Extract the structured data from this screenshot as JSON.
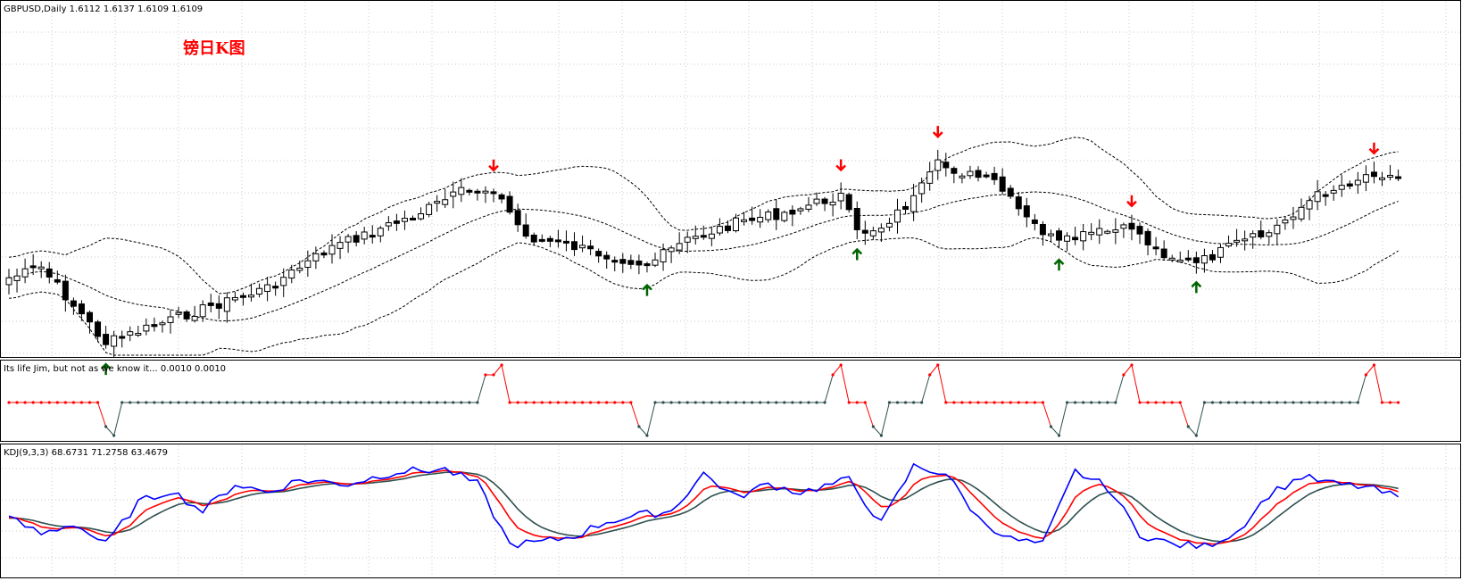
{
  "colors": {
    "background": "#ffffff",
    "frame": "#000000",
    "grid": "#c8c8c8",
    "bull_body": "#ffffff",
    "bear_body": "#000000",
    "band_line": "#000000",
    "signal_buy": "#006400",
    "signal_sell": "#ff0000",
    "jim_high": "#ff0000",
    "jim_low": "#2f4f4f",
    "kdj_k": "#2f4f4f",
    "kdj_d": "#ff0000",
    "kdj_j": "#0000ff",
    "title_red": "#ff0000"
  },
  "header": {
    "main": "GBPUSD,Daily  1.6112 1.6137 1.6109 1.6109",
    "overlay_title": "镑日K图",
    "jim": "Its life Jim, but not as we know it...  0.0010 0.0010",
    "kdj": "KDJ(9,3,3) 68.6731 71.2758 63.4679"
  },
  "chart_data": [
    {
      "type": "candlestick",
      "symbol": "GBPUSD",
      "timeframe": "Daily",
      "last_ohlc": [
        1.6112,
        1.6137,
        1.6109,
        1.6109
      ],
      "grid": true,
      "overlays": [
        "bollinger_upper",
        "bollinger_middle",
        "bollinger_lower"
      ],
      "signals": {
        "sell_arrow_index": [
          60,
          103,
          115,
          139,
          169
        ],
        "buy_arrow_index": [
          12,
          79,
          105,
          130,
          147
        ]
      },
      "path_anchors": [
        [
          0,
          0.79
        ],
        [
          4,
          0.76
        ],
        [
          12,
          0.98
        ],
        [
          18,
          0.93
        ],
        [
          24,
          0.88
        ],
        [
          32,
          0.82
        ],
        [
          40,
          0.7
        ],
        [
          50,
          0.61
        ],
        [
          56,
          0.54
        ],
        [
          60,
          0.53
        ],
        [
          64,
          0.67
        ],
        [
          70,
          0.7
        ],
        [
          75,
          0.73
        ],
        [
          79,
          0.75
        ],
        [
          84,
          0.68
        ],
        [
          90,
          0.63
        ],
        [
          96,
          0.6
        ],
        [
          103,
          0.55
        ],
        [
          105,
          0.66
        ],
        [
          108,
          0.64
        ],
        [
          112,
          0.56
        ],
        [
          115,
          0.46
        ],
        [
          119,
          0.49
        ],
        [
          122,
          0.51
        ],
        [
          126,
          0.62
        ],
        [
          130,
          0.69
        ],
        [
          134,
          0.66
        ],
        [
          138,
          0.65
        ],
        [
          139,
          0.64
        ],
        [
          142,
          0.71
        ],
        [
          147,
          0.75
        ],
        [
          152,
          0.69
        ],
        [
          156,
          0.66
        ],
        [
          159,
          0.6
        ],
        [
          162,
          0.55
        ],
        [
          166,
          0.51
        ],
        [
          169,
          0.48
        ],
        [
          172,
          0.5
        ]
      ],
      "candle_count": 173
    },
    {
      "type": "line",
      "name": "Its life Jim, but not as we know it...",
      "values": [
        0.001,
        0.001
      ],
      "state_runs": [
        [
          0,
          11,
          "mid_high"
        ],
        [
          12,
          13,
          "low"
        ],
        [
          14,
          58,
          "mid_low"
        ],
        [
          59,
          61,
          "high"
        ],
        [
          62,
          77,
          "mid_high"
        ],
        [
          78,
          79,
          "low"
        ],
        [
          80,
          101,
          "mid_low"
        ],
        [
          102,
          103,
          "high"
        ],
        [
          104,
          106,
          "mid_high"
        ],
        [
          107,
          108,
          "low"
        ],
        [
          109,
          113,
          "mid_low"
        ],
        [
          114,
          115,
          "high"
        ],
        [
          116,
          128,
          "mid_high"
        ],
        [
          129,
          130,
          "low"
        ],
        [
          131,
          137,
          "mid_low"
        ],
        [
          138,
          139,
          "high"
        ],
        [
          140,
          145,
          "mid_high"
        ],
        [
          146,
          147,
          "low"
        ],
        [
          148,
          167,
          "mid_low"
        ],
        [
          168,
          169,
          "high"
        ],
        [
          170,
          172,
          "mid_high"
        ]
      ]
    },
    {
      "type": "line",
      "name": "KDJ(9,3,3)",
      "series": [
        {
          "name": "K",
          "last": 68.6731
        },
        {
          "name": "D",
          "last": 71.2758
        },
        {
          "name": "J",
          "last": 63.4679
        }
      ],
      "anchors": [
        [
          0,
          45
        ],
        [
          4,
          30
        ],
        [
          8,
          40
        ],
        [
          12,
          20
        ],
        [
          16,
          60
        ],
        [
          20,
          72
        ],
        [
          24,
          52
        ],
        [
          28,
          78
        ],
        [
          32,
          70
        ],
        [
          36,
          82
        ],
        [
          42,
          78
        ],
        [
          48,
          90
        ],
        [
          54,
          92
        ],
        [
          58,
          78
        ],
        [
          62,
          20
        ],
        [
          66,
          22
        ],
        [
          70,
          28
        ],
        [
          74,
          42
        ],
        [
          78,
          48
        ],
        [
          82,
          52
        ],
        [
          86,
          88
        ],
        [
          90,
          65
        ],
        [
          94,
          78
        ],
        [
          98,
          70
        ],
        [
          104,
          82
        ],
        [
          108,
          40
        ],
        [
          112,
          95
        ],
        [
          116,
          88
        ],
        [
          120,
          45
        ],
        [
          124,
          25
        ],
        [
          128,
          20
        ],
        [
          132,
          90
        ],
        [
          136,
          75
        ],
        [
          140,
          30
        ],
        [
          144,
          20
        ],
        [
          148,
          18
        ],
        [
          152,
          32
        ],
        [
          156,
          68
        ],
        [
          160,
          85
        ],
        [
          164,
          78
        ],
        [
          168,
          75
        ],
        [
          172,
          65
        ]
      ]
    }
  ]
}
